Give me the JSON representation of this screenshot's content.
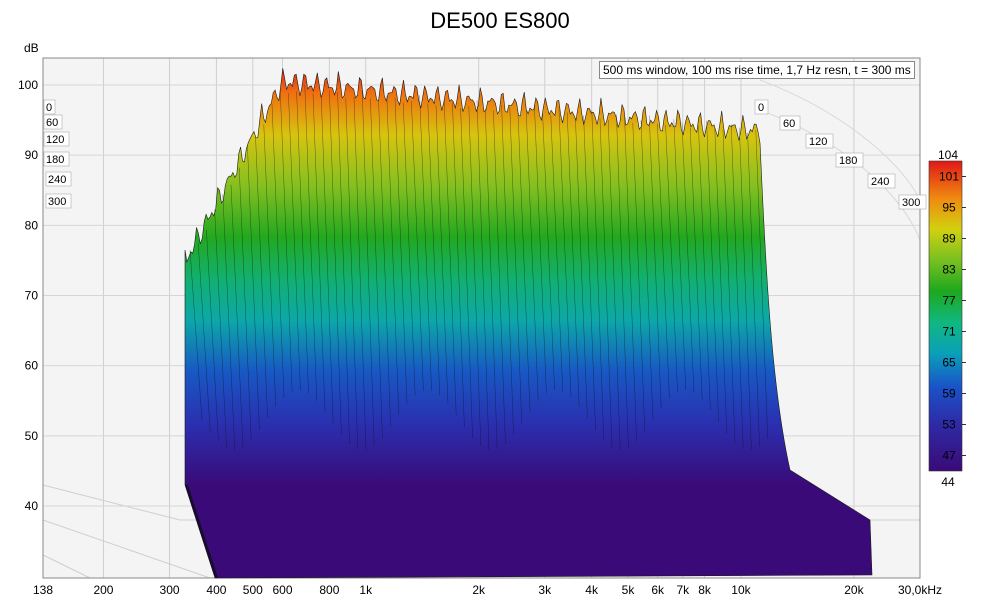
{
  "chart_data": {
    "type": "waterfall",
    "title": "DE500 ES800",
    "ylabel": "dB",
    "xunit": "kHz",
    "annotation": "500 ms window, 100 ms rise time,  1,7 Hz resn, t = 300 ms",
    "x_ticks": [
      "138",
      "200",
      "300",
      "400",
      "500",
      "600",
      "800",
      "1k",
      "2k",
      "3k",
      "4k",
      "5k",
      "6k",
      "7k",
      "8k",
      "10k",
      "20k",
      "30,0kHz"
    ],
    "y_ticks": [
      100,
      90,
      80,
      70,
      60,
      50,
      40
    ],
    "time_ticks": [
      0,
      60,
      120,
      180,
      240,
      300
    ],
    "time_ticks_left_labels": [
      "0",
      "60",
      "120",
      "180",
      "240",
      "300"
    ],
    "time_ticks_right_labels": [
      "0",
      "60",
      "120",
      "180",
      "240",
      "300"
    ],
    "xlim": [
      138,
      30000
    ],
    "ylim": [
      32,
      104
    ],
    "colorbar": {
      "min": 44,
      "max": 104,
      "ticks": [
        101,
        95,
        89,
        83,
        77,
        71,
        65,
        59,
        53,
        47
      ],
      "min_label": "44",
      "max_label": "104"
    },
    "freq_range_plotted": [
      300,
      22000
    ],
    "peak_level_db": 103,
    "floor_level_db": 44
  }
}
